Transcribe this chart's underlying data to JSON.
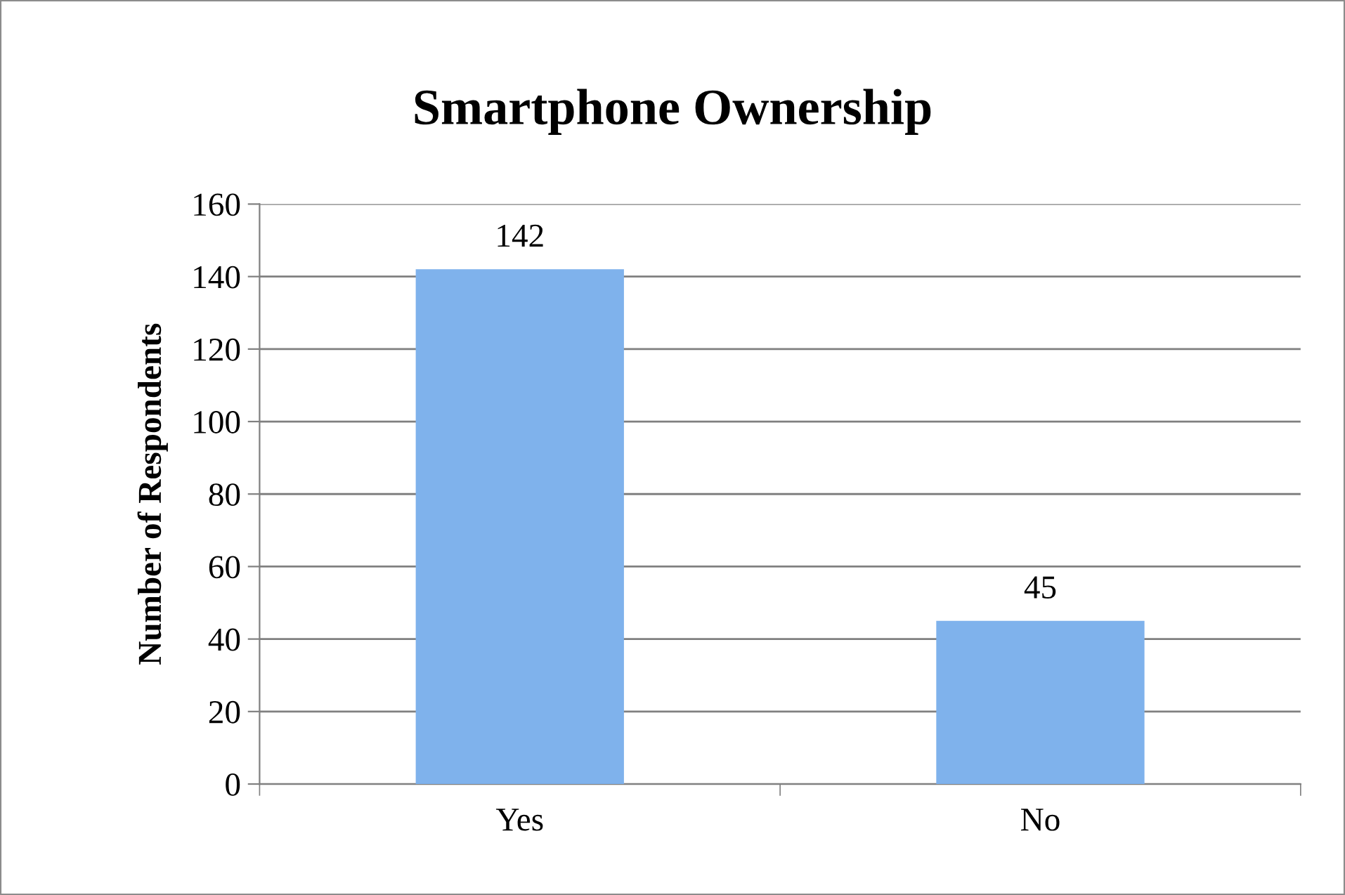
{
  "chart_data": {
    "type": "bar",
    "title": "Smartphone Ownership",
    "ylabel": "Number of Respondents",
    "categories": [
      "Yes",
      "No"
    ],
    "values": [
      142,
      45
    ],
    "color": "#7fb2ec",
    "ylim": [
      0,
      160
    ],
    "yticks": [
      0,
      20,
      40,
      60,
      80,
      100,
      120,
      140,
      160
    ],
    "grid": "y",
    "data_labels": true,
    "legend": false
  }
}
